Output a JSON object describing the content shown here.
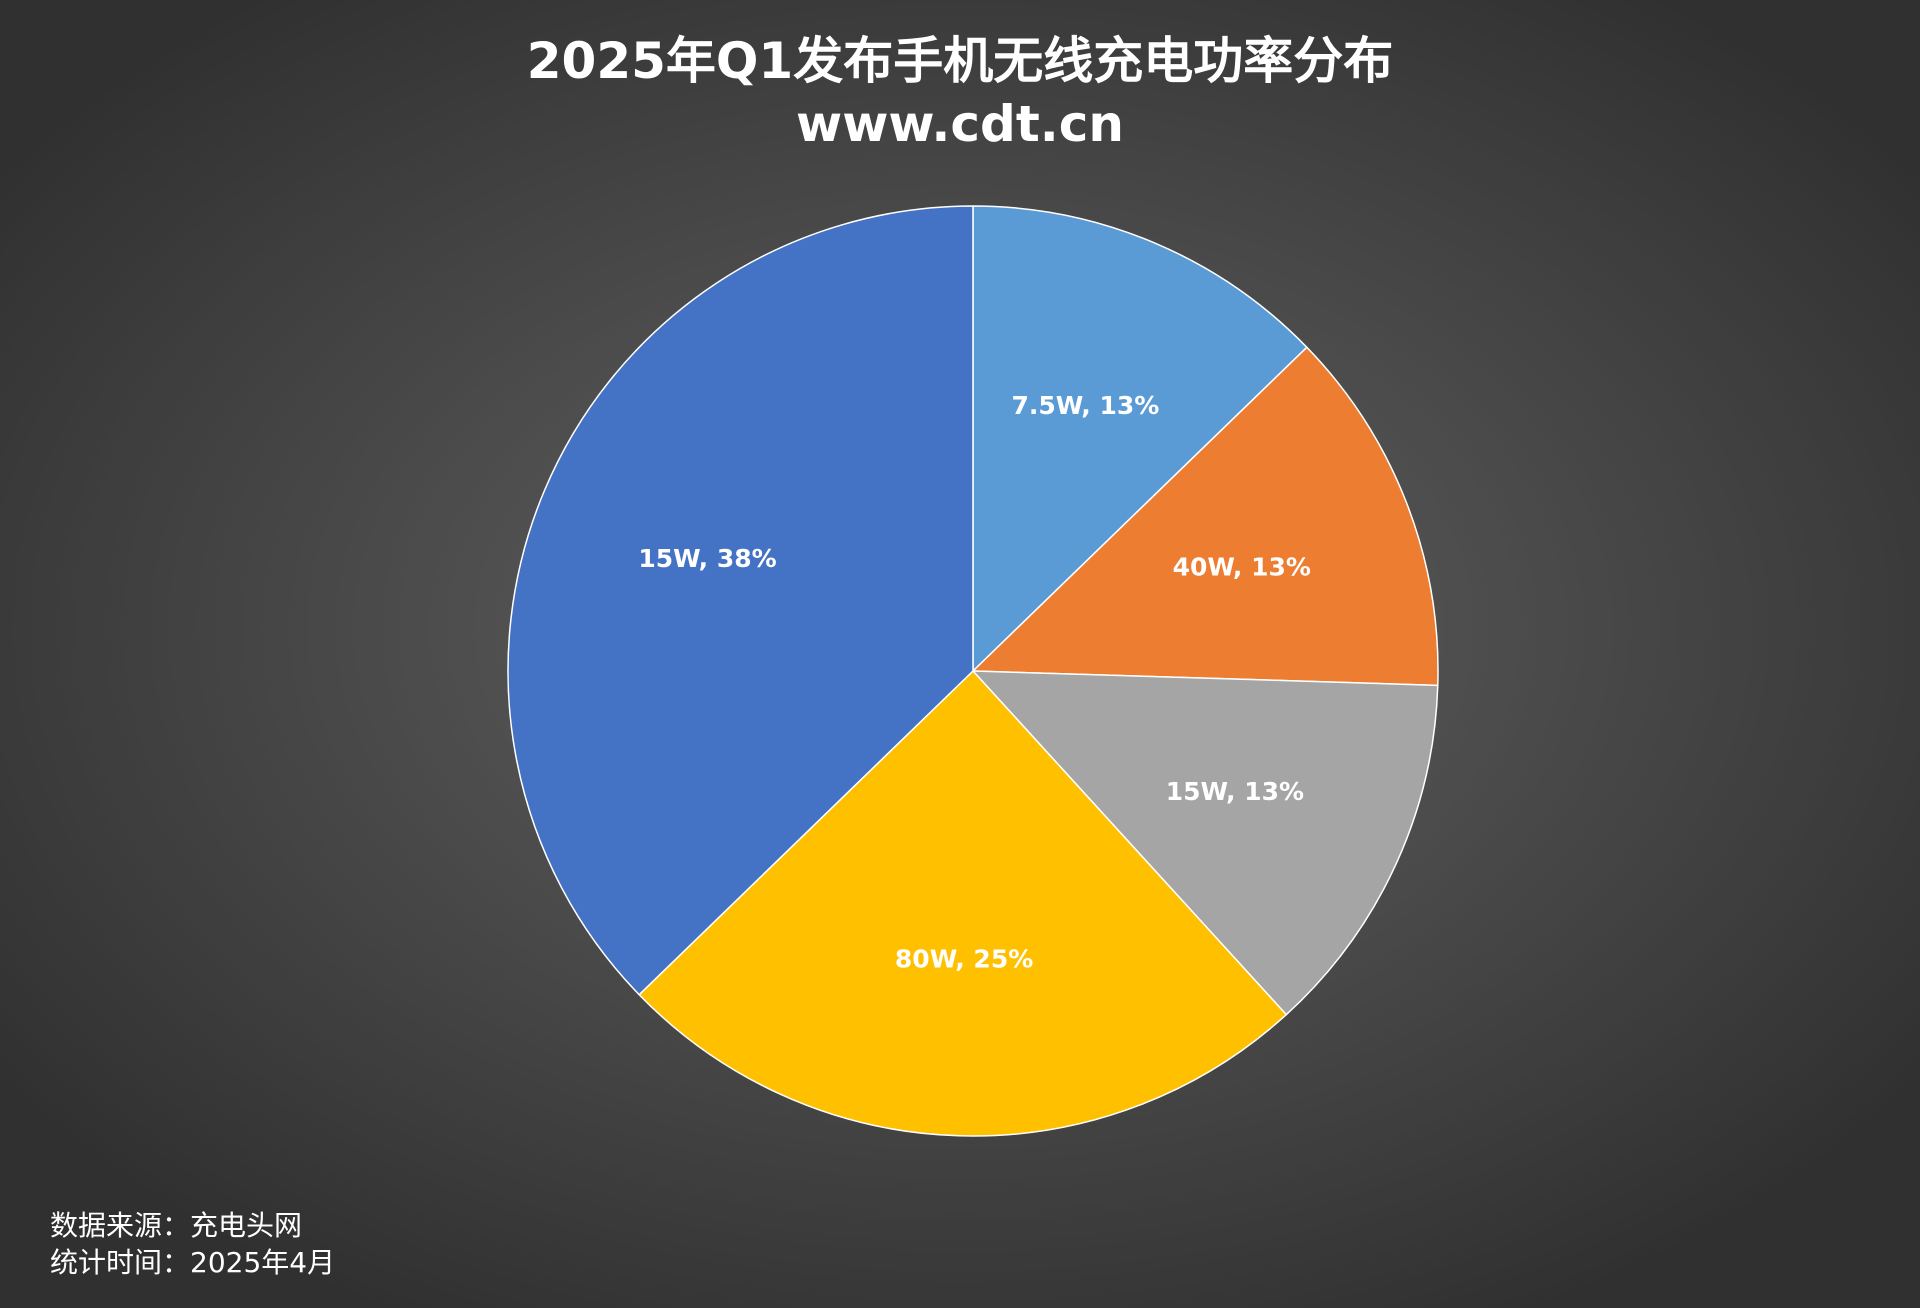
{
  "chart_data": {
    "type": "pie",
    "title": "2025年Q1发布手机无线充电功率分布",
    "subtitle": "www.cdt.cn",
    "start_angle_deg": 0,
    "direction": "clockwise",
    "slices": [
      {
        "label": "7.5W",
        "value": 13,
        "display": "7.5W, 13%",
        "color": "#5B9BD5"
      },
      {
        "label": "40W",
        "value": 13,
        "display": "40W, 13%",
        "color": "#ED7D31"
      },
      {
        "label": "15W",
        "value": 13,
        "display": "15W, 13%",
        "color": "#A5A5A5"
      },
      {
        "label": "80W",
        "value": 25,
        "display": "80W, 25%",
        "color": "#FFC000"
      },
      {
        "label": "15W",
        "value": 38,
        "display": "15W, 38%",
        "color": "#4472C4"
      }
    ],
    "legend": "none",
    "slice_border_color": "#FFFFFF"
  },
  "footer": {
    "source": "数据来源：充电头网",
    "date": "统计时间：2025年4月"
  }
}
